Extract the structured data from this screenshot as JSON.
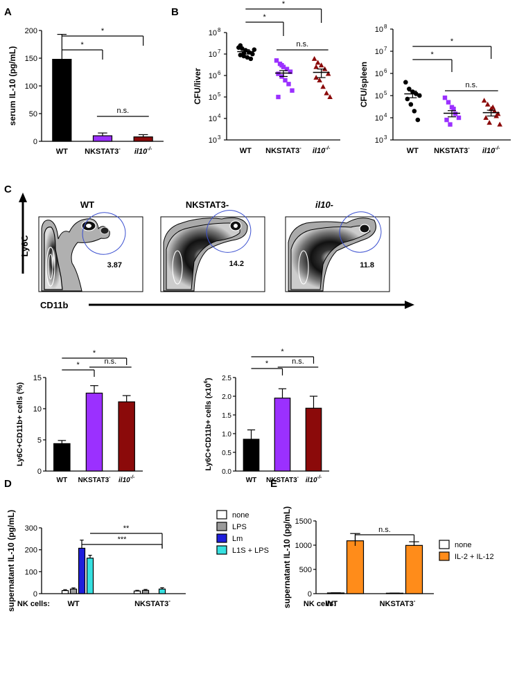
{
  "panels": {
    "A": "A",
    "B": "B",
    "C": "C",
    "D": "D",
    "E": "E"
  },
  "colors": {
    "black": "#000000",
    "purple": "#9b30ff",
    "darkred": "#8b0a0a",
    "gray": "#9a9a9a",
    "blue": "#1f1fdc",
    "cyan": "#36e0e0",
    "orange": "#ff8c1a",
    "white": "#ffffff",
    "gate": "#3a4fd0"
  },
  "flow": {
    "ylabel": "Ly6C",
    "xlabel": "CD11b",
    "plots": [
      {
        "title": "WT",
        "title_italic": false,
        "value": "3.87"
      },
      {
        "title": "NKSTAT3-",
        "title_italic": false,
        "value": "14.2"
      },
      {
        "title": "il10-",
        "title_italic": true,
        "value": "11.8"
      }
    ]
  },
  "labels": {
    "nkcells": "NK cells:",
    "wt": "WT",
    "nkstat3": "NKSTAT3",
    "il10": "il10",
    "sup": "-/-",
    "minus": "-"
  },
  "chart_data": [
    {
      "id": "A",
      "type": "bar",
      "ylabel": "serum IL-10 (pg/mL)",
      "ylim": [
        0,
        200
      ],
      "yticks": [
        0,
        50,
        100,
        150,
        200
      ],
      "categories": [
        "WT",
        "NKSTAT3-",
        "il10-/-"
      ],
      "values": [
        148,
        10,
        8
      ],
      "errors": [
        45,
        5,
        4
      ],
      "colors": [
        "black",
        "purple",
        "darkred"
      ],
      "annotations": [
        "*",
        "*",
        "n.s."
      ]
    },
    {
      "id": "B1",
      "type": "scatter",
      "ylabel": "CFU/liver",
      "yscale": "log",
      "ylim": [
        1000,
        100000000
      ],
      "yticks": [
        "10",
        "10",
        "10",
        "10",
        "10",
        "10"
      ],
      "ytick_exp": [
        "3",
        "4",
        "5",
        "6",
        "7",
        "8"
      ],
      "categories": [
        "WT",
        "NKSTAT3-",
        "il10-/-"
      ],
      "means": [
        13000000,
        1300000,
        1400000
      ],
      "sem": [
        3000000,
        400000,
        600000
      ],
      "points": [
        [
          20000000,
          18000000,
          15000000,
          12000000,
          10000000,
          9000000,
          8000000,
          7000000,
          6000000,
          16000000,
          25000000,
          11000000
        ],
        [
          5000000,
          3500000,
          2500000,
          2000000,
          1500000,
          1200000,
          900000,
          600000,
          400000,
          200000,
          100000,
          3000000
        ],
        [
          6000000,
          4000000,
          3000000,
          2000000,
          1200000,
          800000,
          600000,
          300000,
          150000,
          100000,
          2500000
        ]
      ],
      "markers": [
        "circle",
        "square",
        "triangle"
      ],
      "colors": [
        "black",
        "purple",
        "darkred"
      ],
      "annotations": [
        "*",
        "*",
        "n.s."
      ]
    },
    {
      "id": "B2",
      "type": "scatter",
      "ylabel": "CFU/spleen",
      "yscale": "log",
      "ylim": [
        1000,
        100000000
      ],
      "yticks": [
        "10",
        "10",
        "10",
        "10",
        "10",
        "10"
      ],
      "ytick_exp": [
        "3",
        "4",
        "5",
        "6",
        "7",
        "8"
      ],
      "categories": [
        "WT",
        "NKSTAT3-",
        "il10-/-"
      ],
      "means": [
        120000,
        16000,
        17000
      ],
      "sem": [
        40000,
        5000,
        5000
      ],
      "points": [
        [
          400000,
          200000,
          150000,
          120000,
          100000,
          70000,
          40000,
          20000,
          8000
        ],
        [
          80000,
          50000,
          30000,
          15000,
          10000,
          8000,
          5000,
          25000
        ],
        [
          60000,
          40000,
          25000,
          20000,
          15000,
          10000,
          6000,
          30000,
          12000,
          5000
        ]
      ],
      "markers": [
        "circle",
        "square",
        "triangle"
      ],
      "colors": [
        "black",
        "purple",
        "darkred"
      ],
      "annotations": [
        "*",
        "*",
        "n.s."
      ]
    },
    {
      "id": "C1",
      "type": "bar",
      "ylabel": "Ly6C+CD11b+ cells (%)",
      "ylim": [
        0,
        15
      ],
      "yticks": [
        0,
        5,
        10,
        15
      ],
      "categories": [
        "WT",
        "NKSTAT3-",
        "il10-/-"
      ],
      "values": [
        4.4,
        12.5,
        11.1
      ],
      "errors": [
        0.5,
        1.2,
        1.0
      ],
      "colors": [
        "black",
        "purple",
        "darkred"
      ],
      "annotations": [
        "*",
        "*",
        "n.s."
      ]
    },
    {
      "id": "C2",
      "type": "bar",
      "ylabel": "Ly6C+CD11b+ cells (x10",
      "ylabel_exp": "6",
      "ylabel_end": ")",
      "ylim": [
        0,
        2.5
      ],
      "yticks": [
        "0.0",
        "0.5",
        "1.0",
        "1.5",
        "2.0",
        "2.5"
      ],
      "categories": [
        "WT",
        "NKSTAT3-",
        "il10-/-"
      ],
      "values": [
        0.85,
        1.95,
        1.68
      ],
      "errors": [
        0.25,
        0.25,
        0.32
      ],
      "colors": [
        "black",
        "purple",
        "darkred"
      ],
      "annotations": [
        "*",
        "*",
        "n.s."
      ]
    },
    {
      "id": "D",
      "type": "bar",
      "ylabel": "supernatant IL-10 (pg/mL)",
      "ylim": [
        0,
        300
      ],
      "yticks": [
        0,
        100,
        200,
        300
      ],
      "groups": [
        "WT",
        "NKSTAT3-"
      ],
      "series": [
        {
          "name": "none",
          "color": "white",
          "values": [
            14,
            12
          ],
          "errors": [
            4,
            3
          ]
        },
        {
          "name": "LPS",
          "color": "gray",
          "values": [
            21,
            15
          ],
          "errors": [
            5,
            4
          ]
        },
        {
          "name": "Lm",
          "color": "blue",
          "values": [
            207,
            0
          ],
          "errors": [
            37,
            0
          ]
        },
        {
          "name": "L1S + LPS",
          "color": "cyan",
          "values": [
            162,
            21
          ],
          "errors": [
            13,
            6
          ]
        }
      ],
      "annotations": [
        "**",
        "***"
      ]
    },
    {
      "id": "E",
      "type": "bar",
      "ylabel": "supernatant IL-10 (pg/mL)",
      "ylim": [
        0,
        1500
      ],
      "yticks": [
        0,
        500,
        1000,
        1500
      ],
      "groups": [
        "WT",
        "NKSTAT3-"
      ],
      "series": [
        {
          "name": "none",
          "color": "white",
          "values": [
            15,
            10
          ],
          "errors": [
            3,
            2
          ]
        },
        {
          "name": "IL-2 + IL-12",
          "color": "orange",
          "values": [
            1090,
            995
          ],
          "errors": [
            150,
            75
          ]
        }
      ],
      "annotations": [
        "n.s."
      ]
    }
  ]
}
